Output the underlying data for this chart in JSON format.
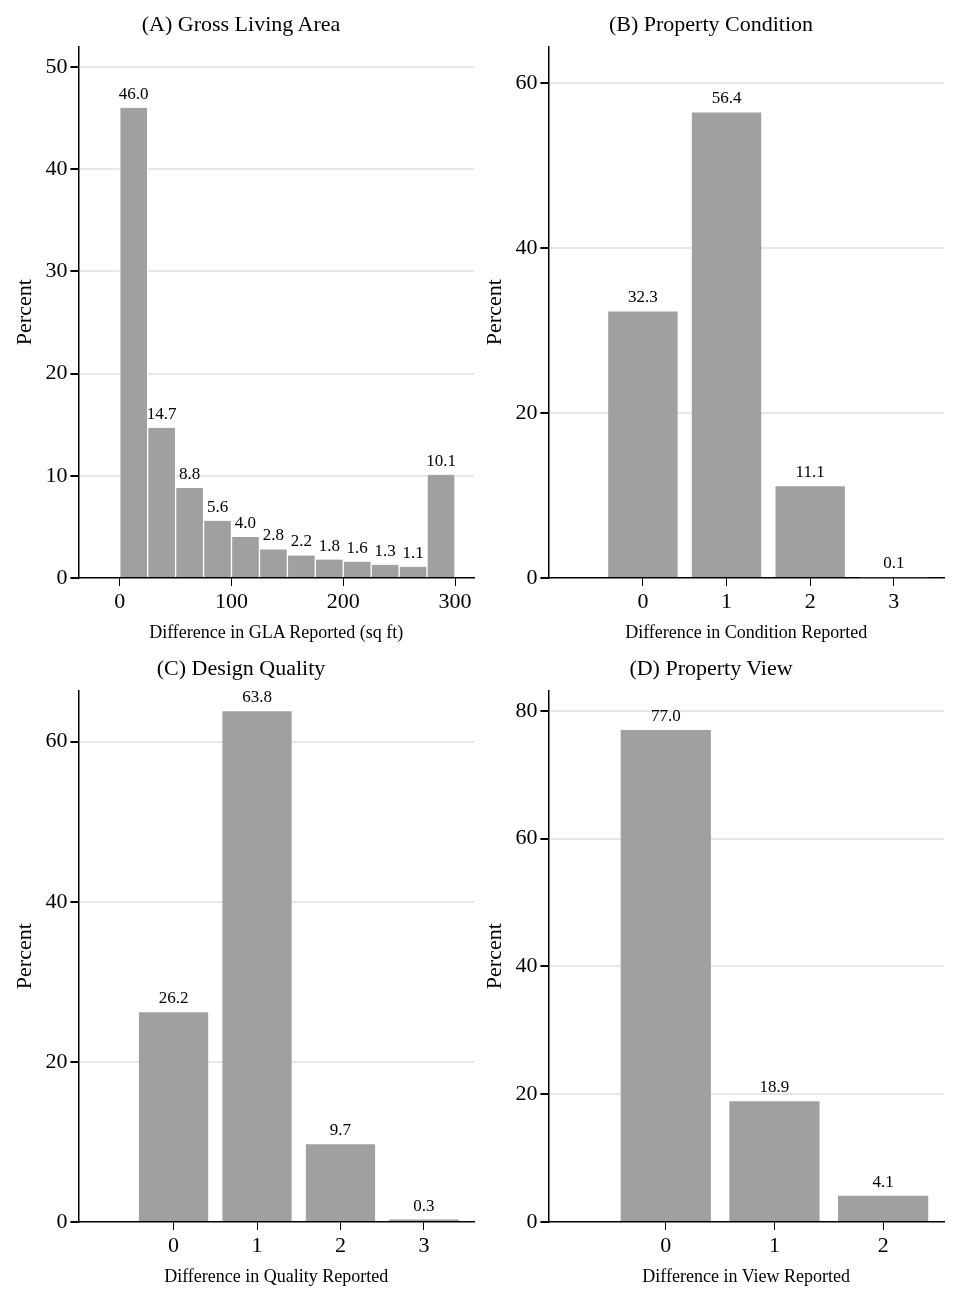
{
  "chart_data": [
    {
      "type": "histogram",
      "title": "(A) Gross Living Area",
      "xlabel": "Difference in GLA Reported (sq ft)",
      "ylabel": "Percent",
      "bins": [
        0,
        25,
        50,
        75,
        100,
        125,
        150,
        175,
        200,
        225,
        250,
        275,
        300
      ],
      "values": [
        46.0,
        14.7,
        8.8,
        5.6,
        4.0,
        2.8,
        2.2,
        1.8,
        1.6,
        1.3,
        1.1,
        10.1
      ],
      "value_labels": [
        "46.0",
        "14.7",
        "8.8",
        "5.6",
        "4.0",
        "2.8",
        "2.2",
        "1.8",
        "1.6",
        "1.3",
        "1.1",
        "10.1"
      ],
      "color": "#a0a0a0",
      "xlim": [
        -37,
        317
      ],
      "xticks": [
        0,
        100,
        200,
        300
      ],
      "ylim": [
        0,
        52
      ],
      "yticks": [
        0,
        10,
        20,
        30,
        40,
        50
      ],
      "grid": "y",
      "legend": false
    },
    {
      "type": "bar",
      "title": "(B) Property Condition",
      "xlabel": "Difference in Condition Reported",
      "ylabel": "Percent",
      "x": [
        0,
        1,
        2,
        3
      ],
      "values": [
        32.3,
        56.4,
        11.1,
        0.1
      ],
      "value_labels": [
        "32.3",
        "56.4",
        "11.1",
        "0.1"
      ],
      "color": "#a0a0a0",
      "xlim": [
        -1.13,
        3.6
      ],
      "xticks": [
        0,
        1,
        2,
        3
      ],
      "ylim": [
        0,
        64.4
      ],
      "yticks": [
        0,
        20,
        40,
        60
      ],
      "grid": "y",
      "legend": false
    },
    {
      "type": "bar",
      "title": "(C) Design Quality",
      "xlabel": "Difference in Quality Reported",
      "ylabel": "Percent",
      "x": [
        0,
        1,
        2,
        3
      ],
      "values": [
        26.2,
        63.8,
        9.7,
        0.3
      ],
      "value_labels": [
        "26.2",
        "63.8",
        "9.7",
        "0.3"
      ],
      "color": "#a0a0a0",
      "xlim": [
        -1.14,
        3.6
      ],
      "xticks": [
        0,
        1,
        2,
        3
      ],
      "ylim": [
        0,
        66.4
      ],
      "yticks": [
        0,
        20,
        40,
        60
      ],
      "grid": "y",
      "legend": false
    },
    {
      "type": "bar",
      "title": "(D) Property View",
      "xlabel": "Difference in View Reported",
      "ylabel": "Percent",
      "x": [
        0,
        1,
        2
      ],
      "values": [
        77.0,
        18.9,
        4.1
      ],
      "value_labels": [
        "77.0",
        "18.9",
        "4.1"
      ],
      "color": "#a0a0a0",
      "xlim": [
        -1.08,
        2.56
      ],
      "xticks": [
        0,
        1,
        2
      ],
      "ylim": [
        0,
        83.2
      ],
      "yticks": [
        0,
        20,
        40,
        60,
        80
      ],
      "grid": "y",
      "legend": false
    }
  ]
}
